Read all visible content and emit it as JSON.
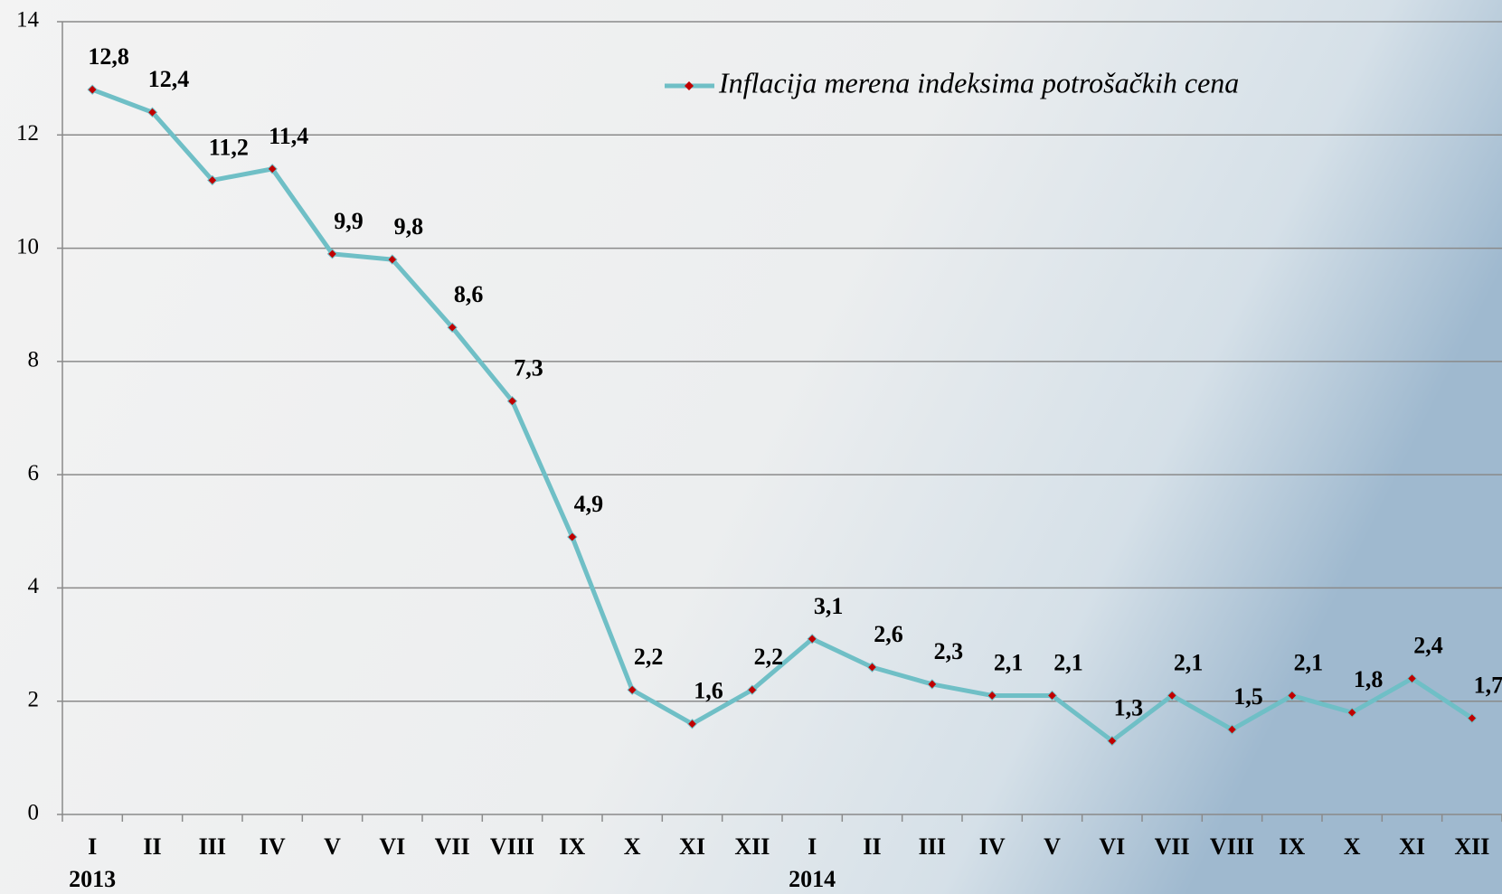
{
  "chart_data": {
    "type": "line",
    "categories": [
      "I",
      "II",
      "III",
      "IV",
      "V",
      "VI",
      "VII",
      "VIII",
      "IX",
      "X",
      "XI",
      "XII",
      "I",
      "II",
      "III",
      "IV",
      "V",
      "VI",
      "VII",
      "VIII",
      "IX",
      "X",
      "XI",
      "XII"
    ],
    "category_years": [
      "2013",
      null,
      null,
      null,
      null,
      null,
      null,
      null,
      null,
      null,
      null,
      null,
      "2014",
      null,
      null,
      null,
      null,
      null,
      null,
      null,
      null,
      null,
      null,
      null
    ],
    "series": [
      {
        "name": "Inflacija merena indeksima potrošačkih cena",
        "color": "#6fbfc6",
        "marker_color": "#c00000",
        "values": [
          12.8,
          12.4,
          11.2,
          11.4,
          9.9,
          9.8,
          8.6,
          7.3,
          4.9,
          2.2,
          1.6,
          2.2,
          3.1,
          2.6,
          2.3,
          2.1,
          2.1,
          1.3,
          2.1,
          1.5,
          2.1,
          1.8,
          2.4,
          1.7
        ],
        "value_labels": [
          "12,8",
          "12,4",
          "11,2",
          "11,4",
          "9,9",
          "9,8",
          "8,6",
          "7,3",
          "4,9",
          "2,2",
          "1,6",
          "2,2",
          "3,1",
          "2,6",
          "2,3",
          "2,1",
          "2,1",
          "1,3",
          "2,1",
          "1,5",
          "2,1",
          "1,8",
          "2,4",
          "1,7"
        ]
      }
    ],
    "ylim": [
      0,
      14
    ],
    "yticks": [
      0,
      2,
      4,
      6,
      8,
      10,
      12,
      14
    ],
    "grid": true,
    "legend": "upper right"
  }
}
